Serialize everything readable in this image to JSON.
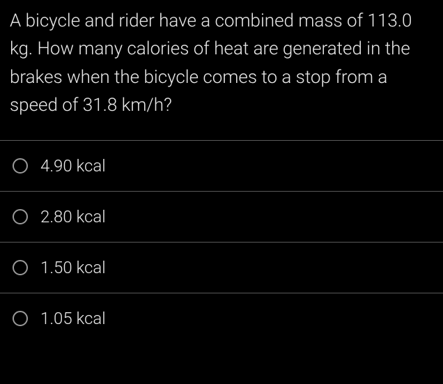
{
  "question_text": "A bicycle and rider have a combined mass of 113.0 kg. How many calories of heat are generated in the brakes when the bicycle comes to a stop from a speed of 31.8 km/h?",
  "options": [
    {
      "label": "4.90 kcal"
    },
    {
      "label": "2.80 kcal"
    },
    {
      "label": "1.50 kcal"
    },
    {
      "label": "1.05 kcal"
    }
  ],
  "colors": {
    "background": "#000000",
    "text": "#e8e8e8",
    "divider": "#5a5a5a",
    "radio_border": "#9a9a9a"
  },
  "typography": {
    "question_fontsize": 26,
    "option_fontsize": 24,
    "font_weight": 300
  }
}
